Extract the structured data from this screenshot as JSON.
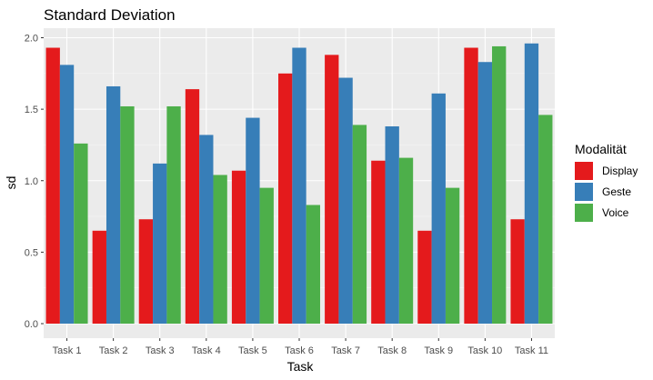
{
  "chart_data": {
    "type": "bar",
    "title": "Standard Deviation",
    "xlabel": "Task",
    "ylabel": "sd",
    "ylim": [
      0,
      2.1
    ],
    "yticks": [
      "0.0",
      "0.5",
      "1.0",
      "1.5",
      "2.0"
    ],
    "grid": true,
    "legend": {
      "title": "Modalität",
      "position": "right"
    },
    "categories": [
      "Task 1",
      "Task 2",
      "Task 3",
      "Task 4",
      "Task 5",
      "Task 6",
      "Task 7",
      "Task 8",
      "Task 9",
      "Task 10",
      "Task 11"
    ],
    "series": [
      {
        "name": "Display",
        "color": "#E41A1C",
        "values": [
          1.93,
          0.65,
          0.73,
          1.64,
          1.07,
          1.75,
          1.88,
          1.14,
          0.65,
          1.93,
          0.73
        ]
      },
      {
        "name": "Geste",
        "color": "#377EB8",
        "values": [
          1.81,
          1.66,
          1.12,
          1.32,
          1.44,
          1.93,
          1.72,
          1.38,
          1.61,
          1.83,
          1.96
        ]
      },
      {
        "name": "Voice",
        "color": "#4DAF4A",
        "values": [
          1.26,
          1.52,
          1.52,
          1.04,
          0.95,
          0.83,
          1.39,
          1.16,
          0.95,
          1.94,
          1.46
        ]
      }
    ]
  }
}
